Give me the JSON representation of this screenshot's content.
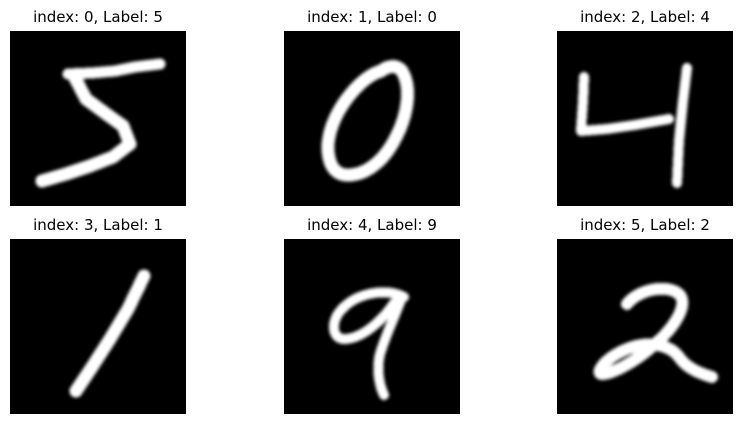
{
  "figure": {
    "background_color": "#ffffff",
    "image_background_color": "#000000",
    "stroke_color": "#ffffff",
    "panels": [
      {
        "title": "index: 0, Label: 5",
        "digit": "5",
        "icon": "handwritten-digit-five"
      },
      {
        "title": "index: 1, Label: 0",
        "digit": "0",
        "icon": "handwritten-digit-zero"
      },
      {
        "title": "index: 2, Label: 4",
        "digit": "4",
        "icon": "handwritten-digit-four"
      },
      {
        "title": "index: 3, Label: 1",
        "digit": "1",
        "icon": "handwritten-digit-one"
      },
      {
        "title": "index: 4, Label: 9",
        "digit": "9",
        "icon": "handwritten-digit-nine"
      },
      {
        "title": "index: 5, Label: 2",
        "digit": "2",
        "icon": "handwritten-digit-two"
      }
    ]
  }
}
